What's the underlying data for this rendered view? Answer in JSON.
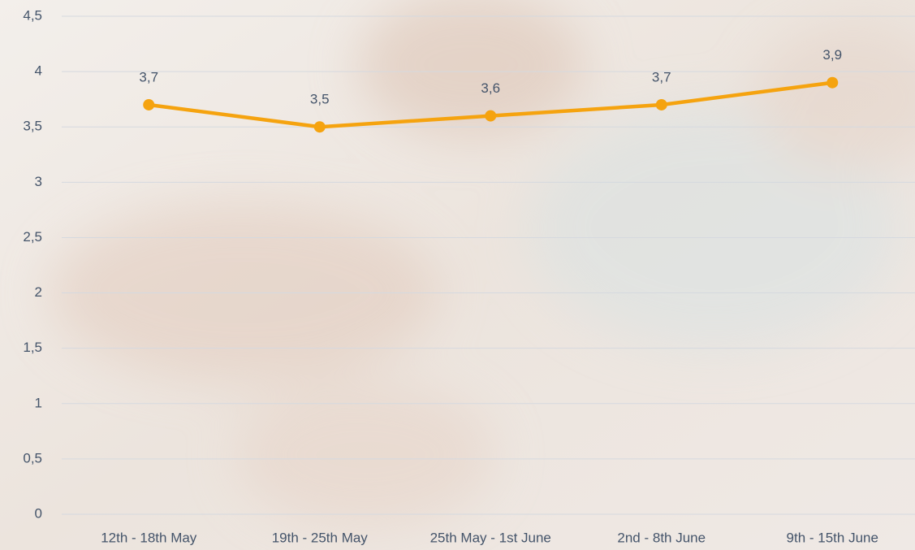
{
  "chart_data": {
    "type": "line",
    "categories": [
      "12th - 18th May",
      "19th - 25th May",
      "25th May - 1st June",
      "2nd - 8th June",
      "9th - 15th June"
    ],
    "series": [
      {
        "color": "#f5a30f",
        "values": [
          3.7,
          3.5,
          3.6,
          3.7,
          3.9
        ],
        "value_labels": [
          "3,7",
          "3,5",
          "3,6",
          "3,7",
          "3,9"
        ]
      }
    ],
    "ylim": [
      0,
      4.5
    ],
    "yticks": [
      0,
      {
        "value": 0.5,
        "label": "0,5"
      },
      1,
      {
        "value": 1.5,
        "label": "1,5"
      },
      2,
      {
        "value": 2.5,
        "label": "2,5"
      },
      3,
      {
        "value": 3.5,
        "label": "3,5"
      },
      4,
      {
        "value": 4.5,
        "label": "4,5"
      }
    ],
    "grid": true
  }
}
